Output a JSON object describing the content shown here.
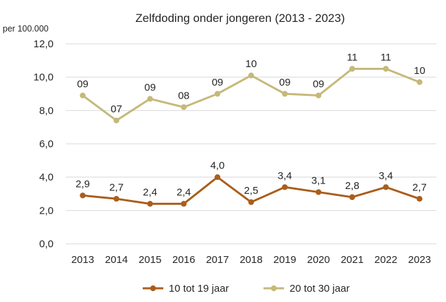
{
  "chart_data": {
    "type": "line",
    "title": "Zelfdoding onder jongeren (2013 - 2023)",
    "ylabel": "per 100.000",
    "xlabel": "",
    "ylim": [
      0,
      12
    ],
    "yticks": [
      0,
      2,
      4,
      6,
      8,
      10,
      12
    ],
    "ytick_labels": [
      "0,0",
      "2,0",
      "4,0",
      "6,0",
      "8,0",
      "10,0",
      "12,0"
    ],
    "grid": true,
    "legend_position": "bottom",
    "categories": [
      "2013",
      "2014",
      "2015",
      "2016",
      "2017",
      "2018",
      "2019",
      "2020",
      "2021",
      "2022",
      "2023"
    ],
    "series": [
      {
        "name": "10 tot 19 jaar",
        "color": "#A95E1C",
        "values": [
          2.9,
          2.7,
          2.4,
          2.4,
          4.0,
          2.5,
          3.4,
          3.1,
          2.8,
          3.4,
          2.7
        ],
        "labels": [
          "2,9",
          "2,7",
          "2,4",
          "2,4",
          "4,0",
          "2,5",
          "3,4",
          "3,1",
          "2,8",
          "3,4",
          "2,7"
        ]
      },
      {
        "name": "20 tot 30 jaar",
        "color": "#C5B97A",
        "values": [
          8.9,
          7.4,
          8.7,
          8.2,
          9.0,
          10.1,
          9.0,
          8.9,
          10.5,
          10.5,
          9.7
        ],
        "labels": [
          "09",
          "07",
          "09",
          "08",
          "09",
          "10",
          "09",
          "09",
          "11",
          "11",
          "10"
        ]
      }
    ]
  }
}
